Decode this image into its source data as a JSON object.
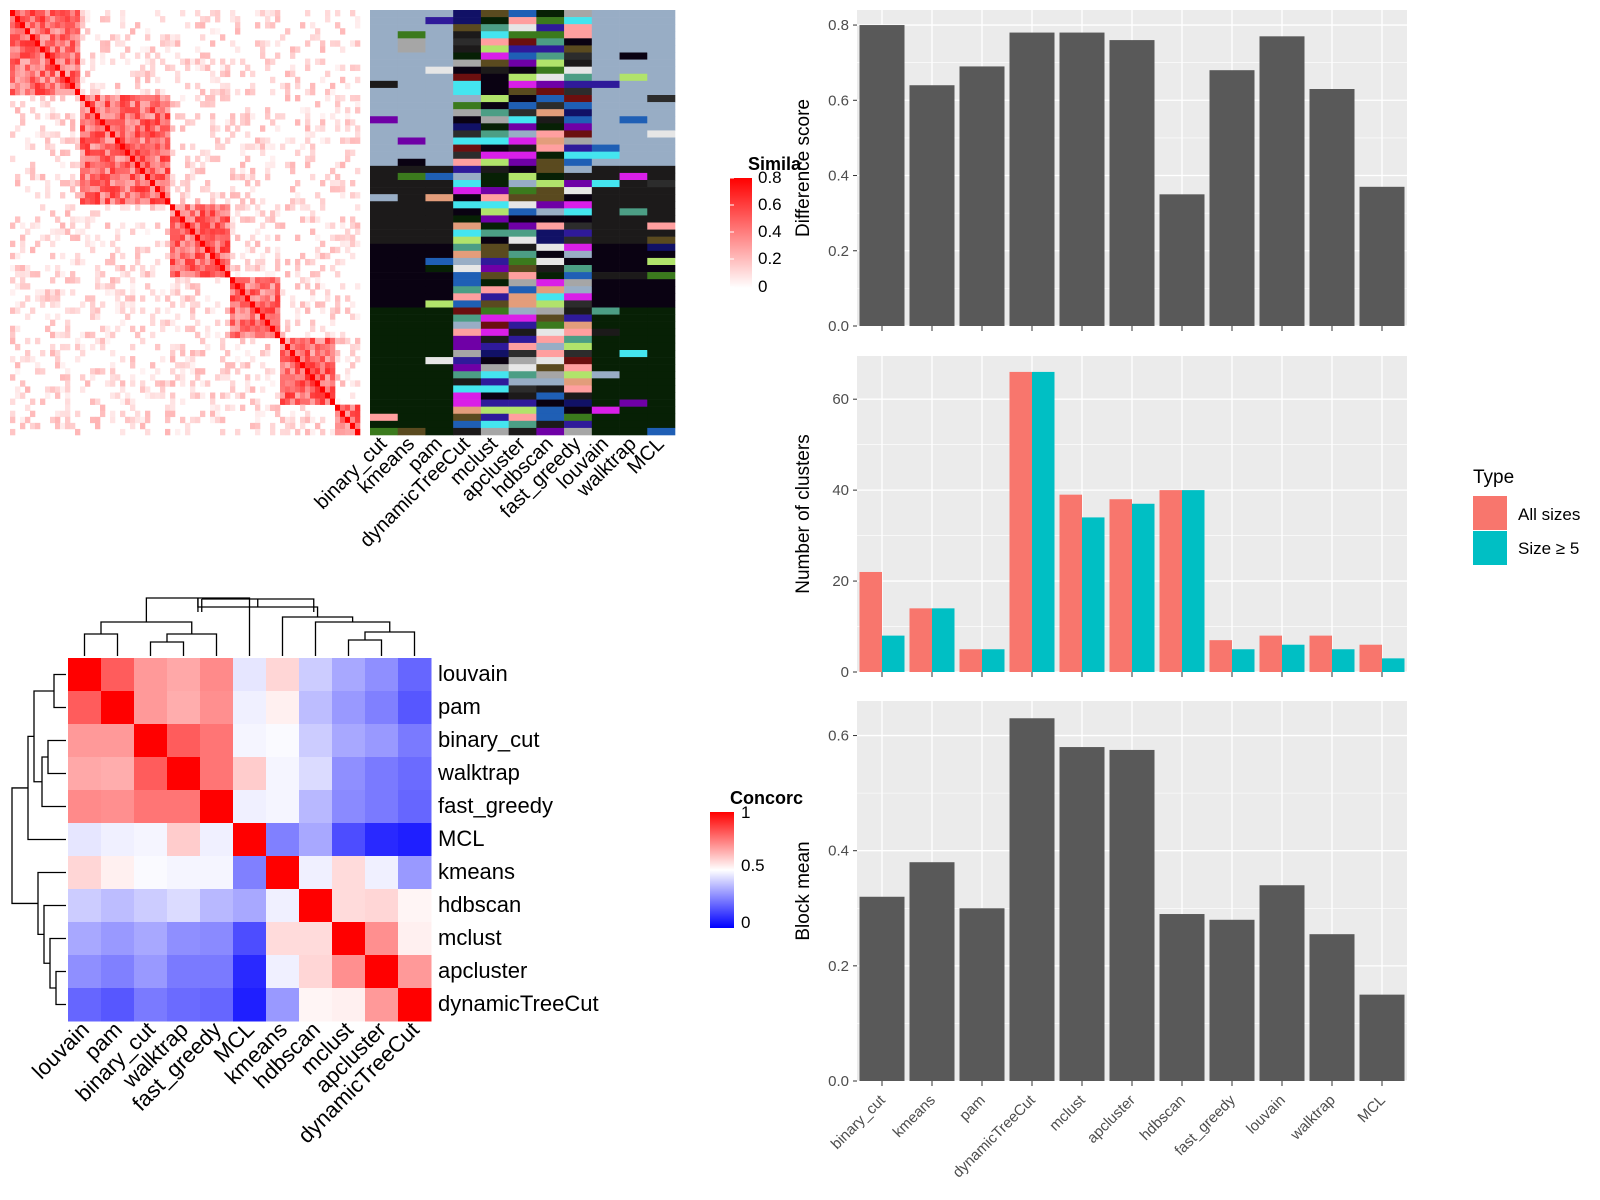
{
  "colors": {
    "panel_bg": "#ebebeb",
    "grid": "#ffffff",
    "bar": "#595959",
    "all_sizes": "#f8766d",
    "size_ge5": "#00bfc4",
    "heat_red": "#ff0000",
    "heat_blue": "#0000ff"
  },
  "similarity_legend": {
    "title": "Simila",
    "ticks": [
      "0.8",
      "0.6",
      "0.4",
      "0.2",
      "0"
    ]
  },
  "concordance_legend": {
    "title": "Concorc",
    "ticks": [
      "1",
      "0.5",
      "0"
    ]
  },
  "top_left_x_labels": [
    "binary_cut",
    "kmeans",
    "pam",
    "dynamicTreeCut",
    "mclust",
    "apcluster",
    "hdbscan",
    "fast_greedy",
    "louvain",
    "walktrap",
    "MCL"
  ],
  "type_legend": {
    "title": "Type",
    "items": [
      "All sizes",
      "Size ≥ 5"
    ]
  },
  "chart_data": [
    {
      "type": "bar",
      "categories": [
        "binary_cut",
        "kmeans",
        "pam",
        "dynamicTreeCut",
        "mclust",
        "apcluster",
        "hdbscan",
        "fast_greedy",
        "louvain",
        "walktrap",
        "MCL"
      ],
      "values": [
        0.8,
        0.64,
        0.69,
        0.78,
        0.78,
        0.76,
        0.35,
        0.68,
        0.77,
        0.63,
        0.37
      ],
      "ylabel": "Difference score",
      "yticks": [
        0.0,
        0.2,
        0.4,
        0.6,
        0.8
      ],
      "ylim": [
        0,
        0.84
      ]
    },
    {
      "type": "bar",
      "categories": [
        "binary_cut",
        "kmeans",
        "pam",
        "dynamicTreeCut",
        "mclust",
        "apcluster",
        "hdbscan",
        "fast_greedy",
        "louvain",
        "walktrap",
        "MCL"
      ],
      "series": [
        {
          "name": "All sizes",
          "values": [
            22,
            14,
            5,
            66,
            39,
            38,
            40,
            7,
            8,
            8,
            6
          ]
        },
        {
          "name": "Size ≥ 5",
          "values": [
            8,
            14,
            5,
            66,
            34,
            37,
            40,
            5,
            6,
            5,
            3
          ]
        }
      ],
      "ylabel": "Number of clusters",
      "yticks": [
        0,
        20,
        40,
        60
      ],
      "ylim": [
        0,
        69.5
      ]
    },
    {
      "type": "bar",
      "categories": [
        "binary_cut",
        "kmeans",
        "pam",
        "dynamicTreeCut",
        "mclust",
        "apcluster",
        "hdbscan",
        "fast_greedy",
        "louvain",
        "walktrap",
        "MCL"
      ],
      "values": [
        0.32,
        0.38,
        0.3,
        0.63,
        0.58,
        0.575,
        0.29,
        0.28,
        0.34,
        0.255,
        0.15
      ],
      "ylabel": "Block mean",
      "yticks": [
        0.0,
        0.2,
        0.4,
        0.6
      ],
      "ylim": [
        0,
        0.66
      ]
    },
    {
      "type": "heatmap",
      "rows": [
        "louvain",
        "pam",
        "binary_cut",
        "walktrap",
        "fast_greedy",
        "MCL",
        "kmeans",
        "hdbscan",
        "mclust",
        "apcluster",
        "dynamicTreeCut"
      ],
      "cols": [
        "louvain",
        "pam",
        "binary_cut",
        "walktrap",
        "fast_greedy",
        "MCL",
        "kmeans",
        "hdbscan",
        "mclust",
        "apcluster",
        "dynamicTreeCut"
      ],
      "values": [
        [
          1.0,
          0.82,
          0.7,
          0.67,
          0.73,
          0.45,
          0.58,
          0.4,
          0.33,
          0.28,
          0.2
        ],
        [
          0.82,
          1.0,
          0.7,
          0.66,
          0.72,
          0.47,
          0.53,
          0.37,
          0.3,
          0.25,
          0.17
        ],
        [
          0.7,
          0.7,
          1.0,
          0.82,
          0.77,
          0.48,
          0.49,
          0.4,
          0.33,
          0.3,
          0.24
        ],
        [
          0.67,
          0.66,
          0.82,
          1.0,
          0.77,
          0.6,
          0.48,
          0.43,
          0.28,
          0.24,
          0.21
        ],
        [
          0.73,
          0.72,
          0.77,
          0.77,
          1.0,
          0.47,
          0.48,
          0.36,
          0.27,
          0.24,
          0.2
        ],
        [
          0.45,
          0.47,
          0.48,
          0.6,
          0.47,
          1.0,
          0.25,
          0.33,
          0.15,
          0.08,
          0.06
        ],
        [
          0.58,
          0.53,
          0.49,
          0.48,
          0.48,
          0.25,
          1.0,
          0.47,
          0.57,
          0.47,
          0.3
        ],
        [
          0.4,
          0.37,
          0.4,
          0.43,
          0.36,
          0.33,
          0.47,
          1.0,
          0.57,
          0.58,
          0.52
        ],
        [
          0.33,
          0.3,
          0.33,
          0.28,
          0.27,
          0.15,
          0.57,
          0.57,
          1.0,
          0.72,
          0.53
        ],
        [
          0.28,
          0.25,
          0.3,
          0.24,
          0.24,
          0.08,
          0.47,
          0.58,
          0.72,
          1.0,
          0.7
        ],
        [
          0.2,
          0.17,
          0.24,
          0.21,
          0.2,
          0.06,
          0.3,
          0.52,
          0.53,
          0.7,
          1.0
        ]
      ],
      "color_range": [
        0,
        1
      ]
    }
  ]
}
